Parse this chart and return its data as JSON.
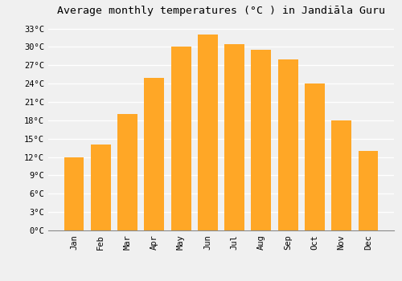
{
  "title": "Average monthly temperatures (°C ) in Jandiāla Guru",
  "months": [
    "Jan",
    "Feb",
    "Mar",
    "Apr",
    "May",
    "Jun",
    "Jul",
    "Aug",
    "Sep",
    "Oct",
    "Nov",
    "Dec"
  ],
  "values": [
    12,
    14,
    19,
    25,
    30,
    32,
    30.5,
    29.5,
    28,
    24,
    18,
    13
  ],
  "bar_color": "#FFA726",
  "background_color": "#f0f0f0",
  "grid_color": "#ffffff",
  "ylim": [
    0,
    34
  ],
  "yticks": [
    0,
    3,
    6,
    9,
    12,
    15,
    18,
    21,
    24,
    27,
    30,
    33
  ],
  "title_fontsize": 9.5,
  "tick_fontsize": 7.5,
  "bar_width": 0.75
}
